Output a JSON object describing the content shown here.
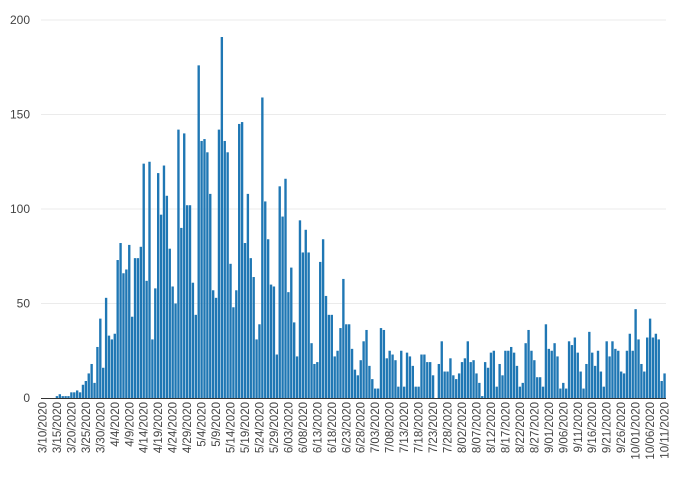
{
  "chart_data": {
    "type": "bar",
    "title": "",
    "xlabel": "",
    "ylabel": "",
    "ylim": [
      0,
      200
    ],
    "yticks": [
      0,
      50,
      100,
      150,
      200
    ],
    "grid": true,
    "bar_color": "#1f77b4",
    "grid_color": "#ebebeb",
    "axis_color": "#333333",
    "start_date": "3/10/2020",
    "x_tick_labels": [
      "3/10/2020",
      "3/15/2020",
      "3/20/2020",
      "3/25/2020",
      "3/30/2020",
      "4/4/2020",
      "4/9/2020",
      "4/14/2020",
      "4/19/2020",
      "4/24/2020",
      "4/29/2020",
      "5/4/2020",
      "5/9/2020",
      "5/14/2020",
      "5/19/2020",
      "5/24/2020",
      "5/29/2020",
      "6/03/2020",
      "6/08/2020",
      "6/13/2020",
      "6/18/2020",
      "6/23/2020",
      "6/28/2020",
      "7/03/2020",
      "7/08/2020",
      "7/13/2020",
      "7/18/2020",
      "7/23/2020",
      "7/28/2020",
      "8/02/2020",
      "8/07/2020",
      "8/12/2020",
      "8/17/2020",
      "8/22/2020",
      "8/27/2020",
      "9/01/2020",
      "9/06/2020",
      "9/11/2020",
      "9/16/2020",
      "9/21/2020",
      "9/26/2020",
      "10/01/2020",
      "10/06/2020",
      "10/11/2020"
    ],
    "values": [
      0,
      0,
      0,
      0,
      0,
      1,
      2,
      1,
      1,
      1,
      3,
      3,
      4,
      3,
      7,
      9,
      13,
      18,
      8,
      27,
      42,
      16,
      53,
      33,
      31,
      34,
      73,
      82,
      66,
      68,
      81,
      43,
      74,
      74,
      80,
      124,
      62,
      125,
      31,
      58,
      119,
      97,
      123,
      107,
      79,
      59,
      50,
      142,
      90,
      140,
      102,
      102,
      61,
      44,
      176,
      136,
      137,
      130,
      108,
      57,
      53,
      142,
      191,
      136,
      130,
      71,
      48,
      57,
      145,
      146,
      82,
      108,
      74,
      64,
      31,
      39,
      159,
      104,
      84,
      60,
      59,
      23,
      112,
      96,
      116,
      56,
      69,
      40,
      22,
      94,
      77,
      89,
      77,
      29,
      18,
      19,
      72,
      84,
      54,
      44,
      44,
      22,
      25,
      37,
      63,
      39,
      39,
      26,
      15,
      12,
      20,
      30,
      36,
      17,
      10,
      5,
      5,
      37,
      36,
      21,
      25,
      23,
      20,
      6,
      25,
      6,
      24,
      22,
      17,
      6,
      6,
      23,
      23,
      19,
      19,
      12,
      0,
      18,
      30,
      14,
      14,
      21,
      12,
      10,
      13,
      19,
      21,
      30,
      19,
      20,
      13,
      8,
      1,
      19,
      16,
      24,
      25,
      6,
      18,
      12,
      25,
      25,
      27,
      24,
      17,
      6,
      8,
      29,
      36,
      25,
      20,
      11,
      11,
      6,
      39,
      26,
      25,
      29,
      22,
      5,
      8,
      5,
      30,
      28,
      32,
      24,
      14,
      5,
      18,
      35,
      24,
      17,
      25,
      14,
      6,
      30,
      22,
      30,
      26,
      25,
      14,
      13,
      25,
      34,
      25,
      47,
      31,
      18,
      14,
      32,
      42,
      32,
      34,
      31,
      9,
      13
    ]
  }
}
